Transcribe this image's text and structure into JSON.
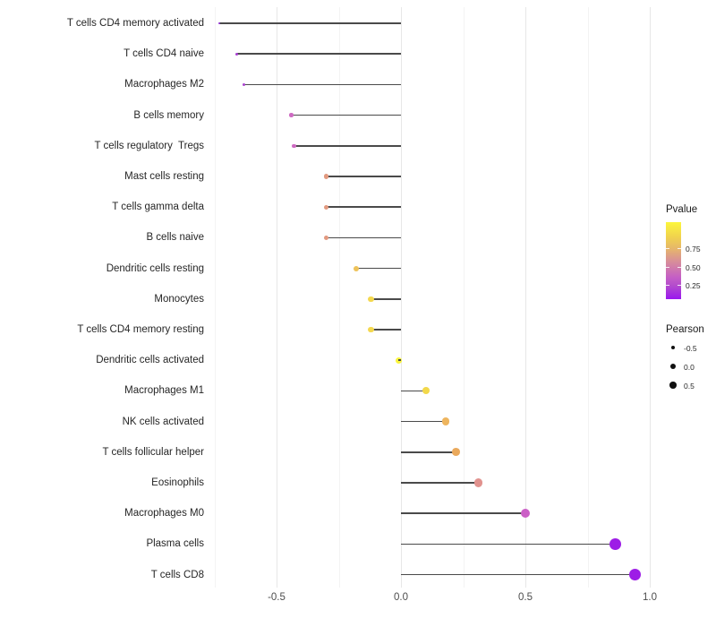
{
  "chart_data": {
    "type": "scatter",
    "variant": "lollipop",
    "title": "",
    "xlabel": "",
    "ylabel": "",
    "xlim": [
      -0.81,
      1.03
    ],
    "grid": true,
    "baseline": 0,
    "xticks": [
      {
        "value": -0.5,
        "label": "-0.5"
      },
      {
        "value": 0.0,
        "label": "0.0"
      },
      {
        "value": 0.5,
        "label": "0.5"
      },
      {
        "value": 1.0,
        "label": "1.0"
      }
    ],
    "minor_ticks": [
      -0.75,
      -0.25,
      0.25,
      0.75
    ],
    "points": [
      {
        "label": "T cells CD4 memory activated",
        "pearson": -0.73,
        "pvalue": 0.07,
        "color": "#9430da"
      },
      {
        "label": "T cells CD4 naive",
        "pearson": -0.66,
        "pvalue": 0.11,
        "color": "#a83fd2"
      },
      {
        "label": "Macrophages M2",
        "pearson": -0.63,
        "pvalue": 0.13,
        "color": "#aa44ce"
      },
      {
        "label": "B cells memory",
        "pearson": -0.44,
        "pvalue": 0.32,
        "color": "#ce6ac2"
      },
      {
        "label": "T cells regulatory  Tregs",
        "pearson": -0.43,
        "pvalue": 0.32,
        "color": "#ce6ac2"
      },
      {
        "label": "Mast cells resting",
        "pearson": -0.3,
        "pvalue": 0.54,
        "color": "#e2997f"
      },
      {
        "label": "T cells gamma delta",
        "pearson": -0.3,
        "pvalue": 0.54,
        "color": "#e2997f"
      },
      {
        "label": "B cells naive",
        "pearson": -0.3,
        "pvalue": 0.54,
        "color": "#e2997f"
      },
      {
        "label": "Dendritic cells resting",
        "pearson": -0.18,
        "pvalue": 0.73,
        "color": "#eec35a"
      },
      {
        "label": "Monocytes",
        "pearson": -0.12,
        "pvalue": 0.8,
        "color": "#f4d84e"
      },
      {
        "label": "T cells CD4 memory resting",
        "pearson": -0.12,
        "pvalue": 0.8,
        "color": "#f4d84e"
      },
      {
        "label": "Dendritic cells activated",
        "pearson": -0.01,
        "pvalue": 0.97,
        "color": "#fbf53c"
      },
      {
        "label": "Macrophages M1",
        "pearson": 0.1,
        "pvalue": 0.81,
        "color": "#f2d84a"
      },
      {
        "label": "NK cells activated",
        "pearson": 0.18,
        "pvalue": 0.66,
        "color": "#eeb55e"
      },
      {
        "label": "T cells follicular helper",
        "pearson": 0.22,
        "pvalue": 0.62,
        "color": "#eaa95c"
      },
      {
        "label": "Eosinophils",
        "pearson": 0.31,
        "pvalue": 0.47,
        "color": "#e1928e"
      },
      {
        "label": "Macrophages M0",
        "pearson": 0.5,
        "pvalue": 0.28,
        "color": "#cb5fc6"
      },
      {
        "label": "Plasma cells",
        "pearson": 0.86,
        "pvalue": 0.03,
        "color": "#9d1de6"
      },
      {
        "label": "T cells CD8",
        "pearson": 0.94,
        "pvalue": 0.02,
        "color": "#9d1de6"
      }
    ],
    "legends": {
      "pvalue": {
        "title": "Pvalue",
        "ticks": [
          "0.75",
          "0.50",
          "0.25"
        ],
        "gradient_top": "#fcf63c",
        "gradient_mid": "#d99097",
        "gradient_bottom": "#9a17ef"
      },
      "pearson": {
        "title": "Pearson",
        "items": [
          {
            "label": "-0.5",
            "size": 4.5
          },
          {
            "label": "0.0",
            "size": 6
          },
          {
            "label": "0.5",
            "size": 7.5
          }
        ]
      }
    }
  }
}
